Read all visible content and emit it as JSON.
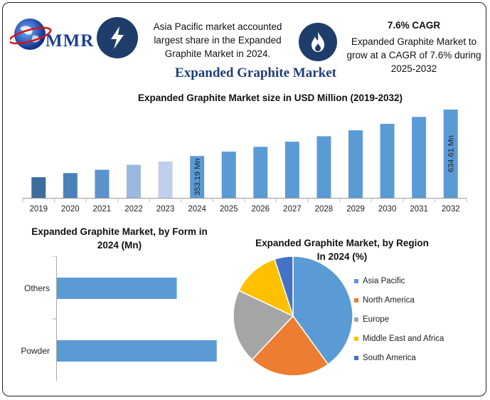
{
  "header": {
    "logo_text": "MMR",
    "info_left": {
      "icon": "lightning-bolt-icon",
      "line1": "Asia Pacific market accounted",
      "line2": "largest share in the Expanded",
      "line3": "Graphite Market in 2024."
    },
    "info_right": {
      "icon": "flame-icon",
      "title": "7.6% CAGR",
      "line1": "Expanded Graphite Market to",
      "line2": "grow at a CAGR of 7.6% during",
      "line3": "2025-2032"
    }
  },
  "main_title": "Expanded Graphite Market",
  "colors": {
    "icon_circle": "#1f3d6b",
    "bar_palette": [
      "#3d6d9c",
      "#4a82b8",
      "#5b93cc",
      "#9bb8e0",
      "#bed0ec",
      "#5b9bd5"
    ],
    "pie": [
      "#5b9bd5",
      "#ed7d31",
      "#a5a5a5",
      "#ffc000",
      "#4472c4"
    ]
  },
  "chart_data": [
    {
      "type": "bar",
      "title": "Expanded Graphite Market size in USD Million (2019-2032)",
      "categories": [
        "2019",
        "2020",
        "2021",
        "2022",
        "2023",
        "2024",
        "2025",
        "2026",
        "2027",
        "2028",
        "2029",
        "2030",
        "2031",
        "2032"
      ],
      "values": [
        225,
        250,
        270,
        300,
        320,
        353.19,
        380,
        409,
        440,
        473,
        509,
        548,
        590,
        634.61
      ],
      "data_labels": [
        {
          "category": "2024",
          "text": "353.19 Mn"
        },
        {
          "category": "2032",
          "text": "634.61 Mn"
        }
      ],
      "ylim": [
        100,
        660
      ],
      "grid": false
    },
    {
      "type": "bar",
      "orientation": "horizontal",
      "title_line1": "Expanded Graphite Market, by Form in",
      "title_line2": "2024 (Mn)",
      "categories": [
        "Others",
        "Powder"
      ],
      "values": [
        150,
        200
      ],
      "xlim": [
        0,
        210
      ],
      "color": "#5b9bd5"
    },
    {
      "type": "pie",
      "title_line1": "Expanded Graphite Market, by Region",
      "title_line2": "In 2024 (%)",
      "labels": [
        "Asia Pacific",
        "North America",
        "Europe",
        "Middle East and Africa",
        "South America"
      ],
      "values": [
        40,
        22,
        20,
        13,
        5
      ],
      "legend_position": "right"
    }
  ]
}
